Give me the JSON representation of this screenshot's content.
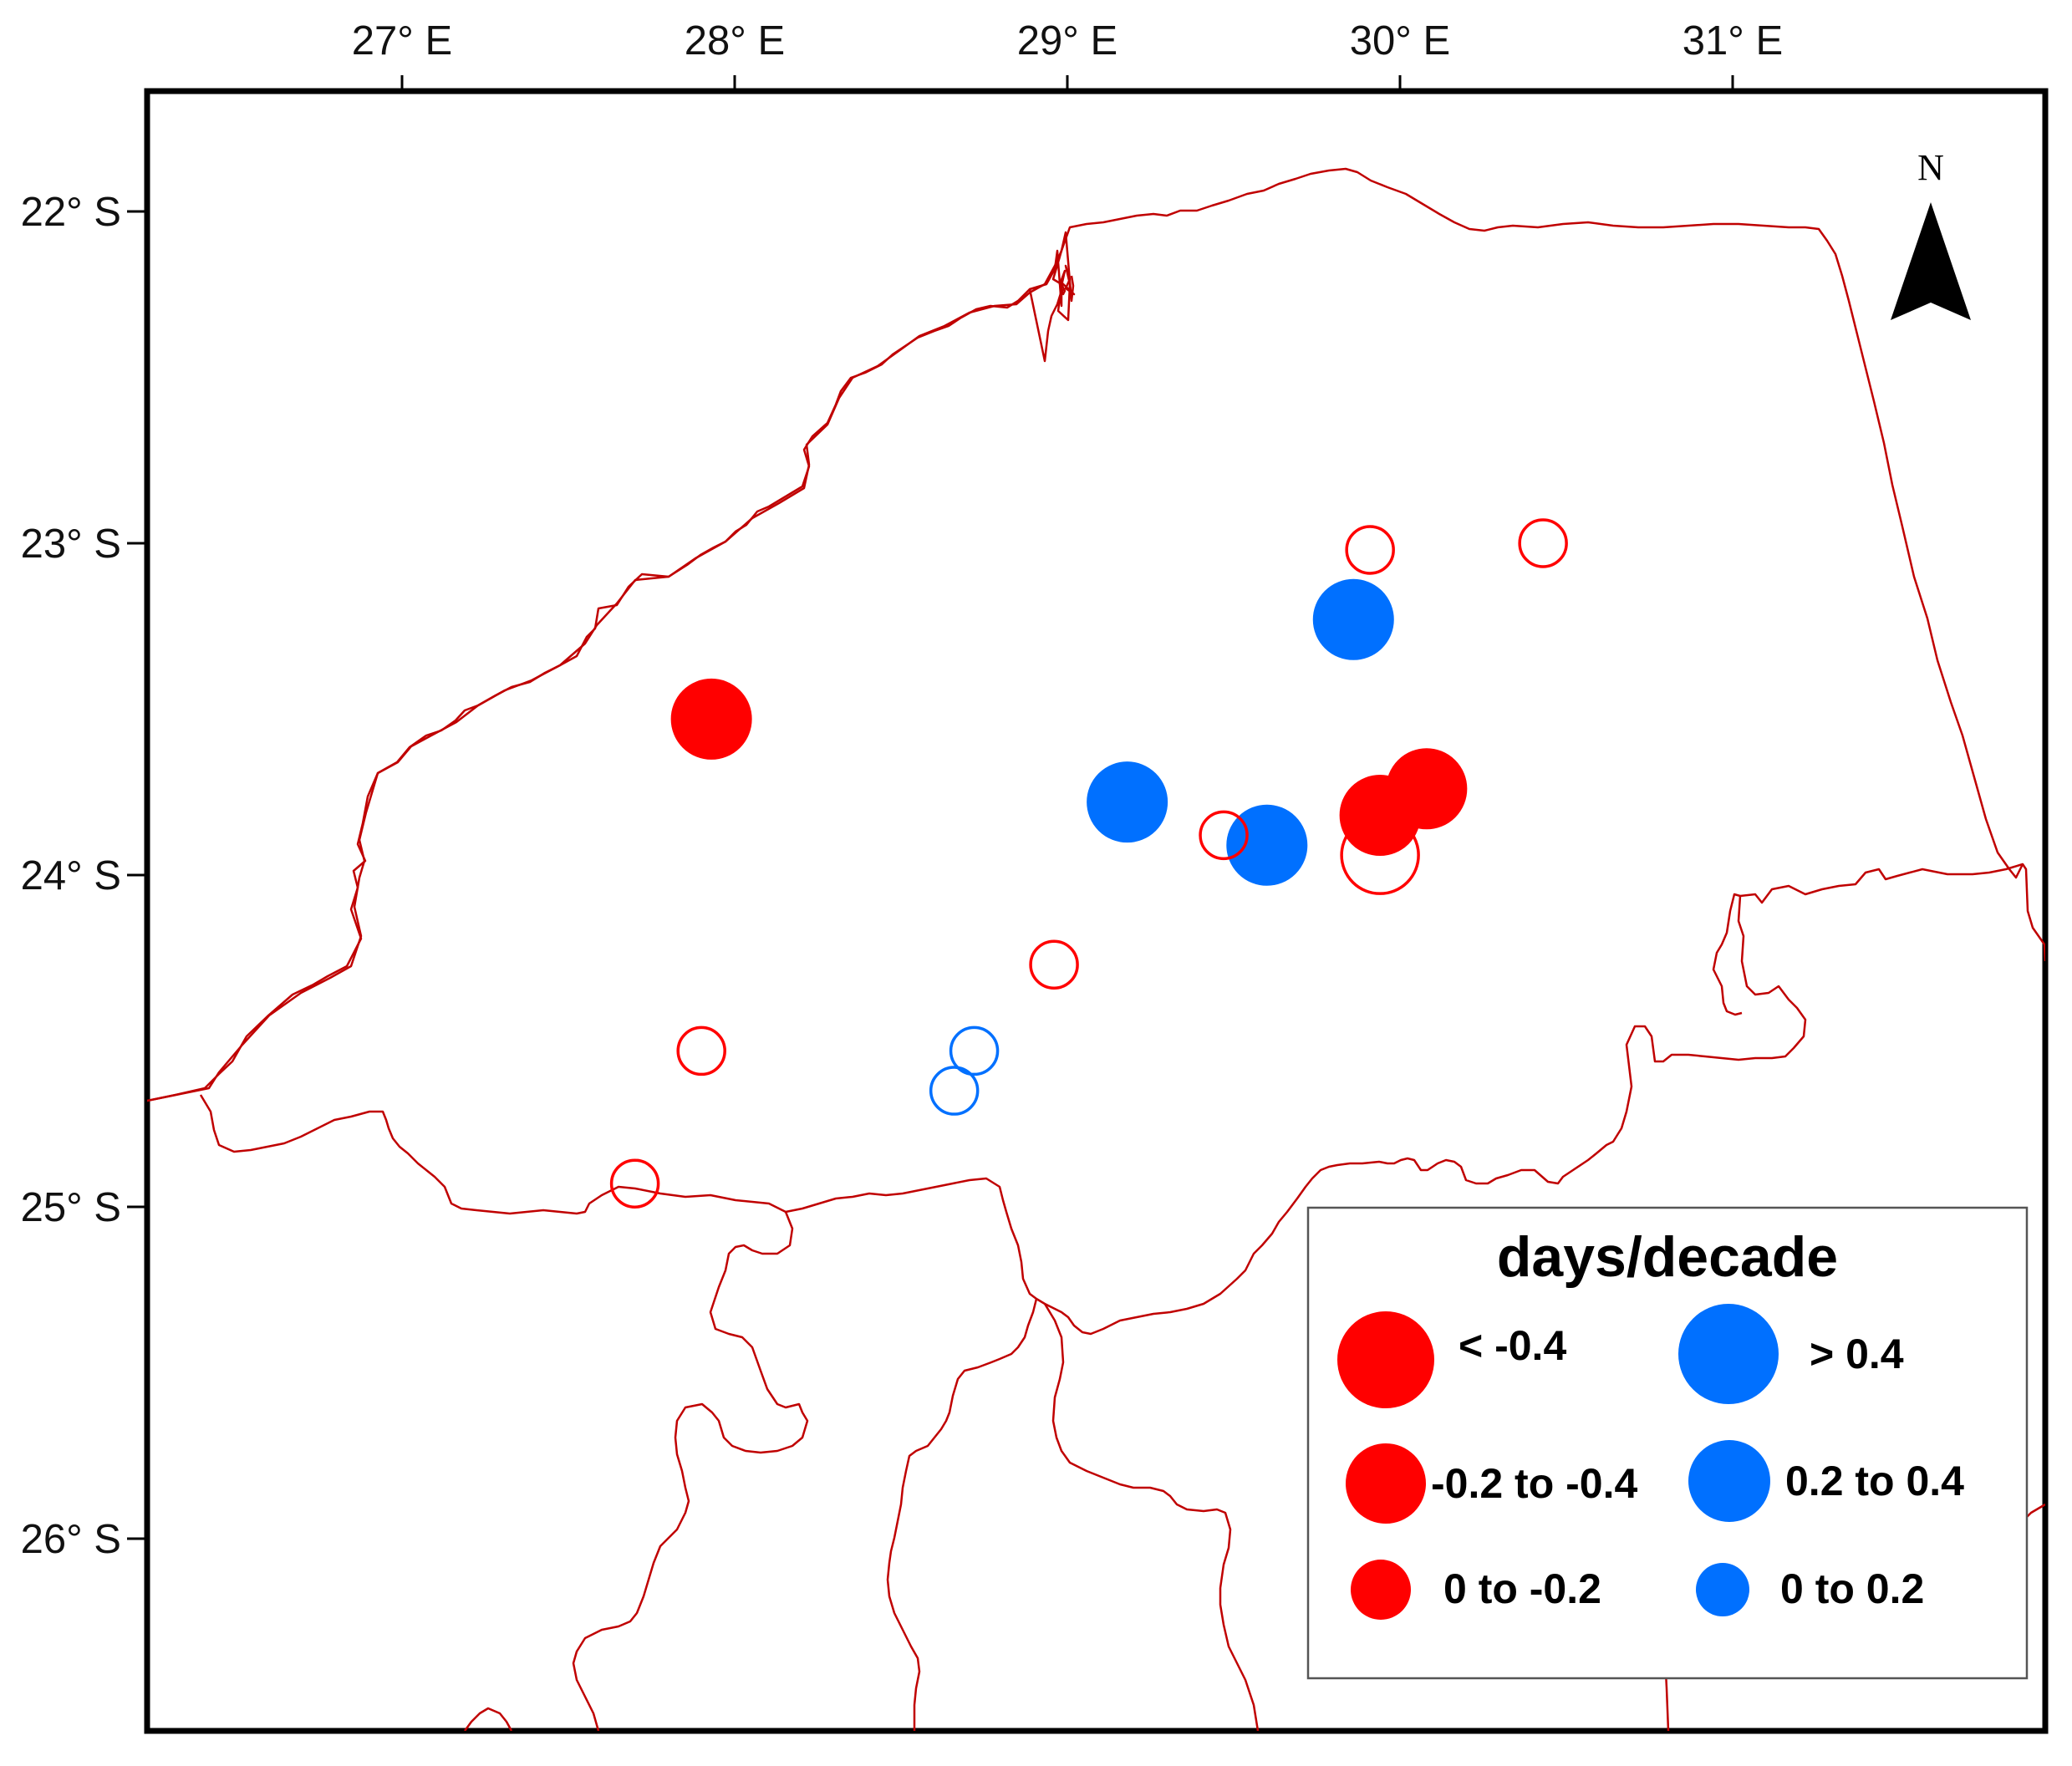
{
  "map": {
    "lon_ticks": [
      {
        "label": "27° E",
        "lon": 27
      },
      {
        "label": "28° E",
        "lon": 28
      },
      {
        "label": "29° E",
        "lon": 29
      },
      {
        "label": "30° E",
        "lon": 30
      },
      {
        "label": "31° E",
        "lon": 31
      }
    ],
    "lat_ticks": [
      {
        "label": "22° S",
        "lat": -22
      },
      {
        "label": "23° S",
        "lat": -23
      },
      {
        "label": "24° S",
        "lat": -24
      },
      {
        "label": "25° S",
        "lat": -25
      },
      {
        "label": "26° S",
        "lat": -26
      }
    ],
    "north_arrow": {
      "label": "N"
    },
    "legend": {
      "title": "days/decade",
      "items": [
        {
          "label": "< -0.4",
          "color": "#ff0000",
          "class": "decrease-large"
        },
        {
          "label": "> 0.4",
          "color": "#0070ff",
          "class": "increase-large"
        },
        {
          "label": "-0.2 to -0.4",
          "color": "#ff0000",
          "class": "decrease-medium"
        },
        {
          "label": "0.2 to 0.4",
          "color": "#0070ff",
          "class": "increase-medium"
        },
        {
          "label": "0 to -0.2",
          "color": "#ff0000",
          "class": "decrease-small"
        },
        {
          "label": "0 to 0.2",
          "color": "#0070ff",
          "class": "increase-small"
        }
      ]
    },
    "colors": {
      "negative": "#ff0000",
      "positive": "#0070ff",
      "boundary": "#c00000",
      "frame": "#000000"
    },
    "stations": [
      {
        "lon": 27.93,
        "lat": -23.53,
        "trend": "decrease",
        "magnitude": "large",
        "significant": true
      },
      {
        "lon": 29.18,
        "lat": -23.78,
        "trend": "increase",
        "magnitude": "large",
        "significant": true
      },
      {
        "lon": 29.6,
        "lat": -23.91,
        "trend": "increase",
        "magnitude": "large",
        "significant": true
      },
      {
        "lon": 29.86,
        "lat": -23.23,
        "trend": "increase",
        "magnitude": "large",
        "significant": true
      },
      {
        "lon": 29.94,
        "lat": -23.82,
        "trend": "decrease",
        "magnitude": "large",
        "significant": true
      },
      {
        "lon": 30.08,
        "lat": -23.74,
        "trend": "decrease",
        "magnitude": "large",
        "significant": true
      },
      {
        "lon": 29.94,
        "lat": -23.94,
        "trend": "decrease",
        "magnitude": "medium",
        "significant": false
      },
      {
        "lon": 29.91,
        "lat": -23.02,
        "trend": "decrease",
        "magnitude": "small",
        "significant": false
      },
      {
        "lon": 30.43,
        "lat": -23.0,
        "trend": "decrease",
        "magnitude": "small",
        "significant": false
      },
      {
        "lon": 29.47,
        "lat": -23.88,
        "trend": "decrease",
        "magnitude": "small",
        "significant": false
      },
      {
        "lon": 28.96,
        "lat": -24.27,
        "trend": "decrease",
        "magnitude": "small",
        "significant": false
      },
      {
        "lon": 27.9,
        "lat": -24.53,
        "trend": "decrease",
        "magnitude": "small",
        "significant": false
      },
      {
        "lon": 28.72,
        "lat": -24.53,
        "trend": "increase",
        "magnitude": "small",
        "significant": false
      },
      {
        "lon": 28.66,
        "lat": -24.65,
        "trend": "increase",
        "magnitude": "small",
        "significant": false
      },
      {
        "lon": 27.7,
        "lat": -24.93,
        "trend": "decrease",
        "magnitude": "small",
        "significant": false
      }
    ]
  }
}
